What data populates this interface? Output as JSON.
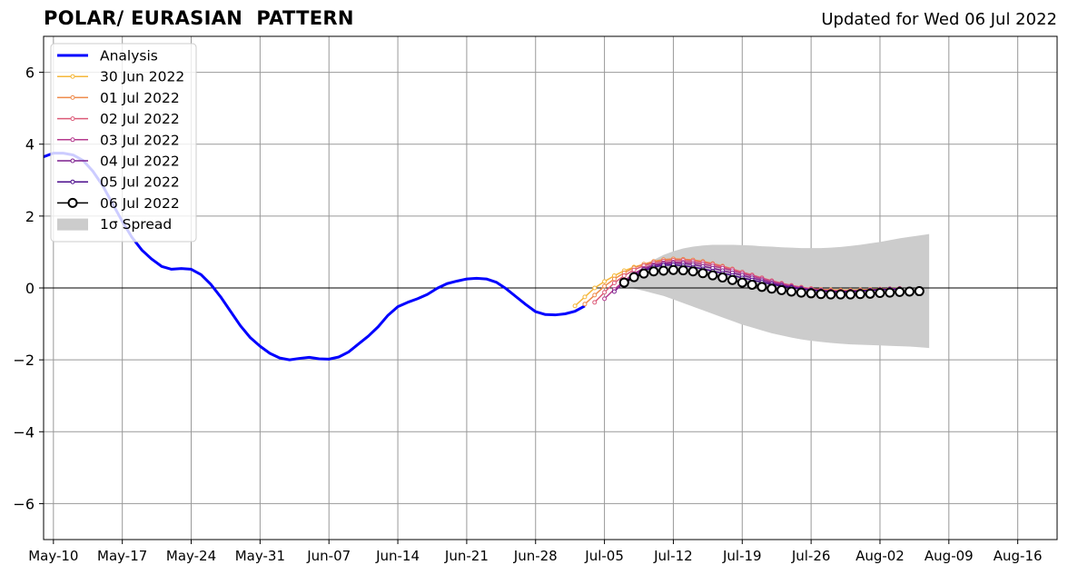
{
  "chart_data": {
    "type": "line",
    "title": "POLAR/ EURASIAN  PATTERN",
    "subtitle": "Updated for Wed 06 Jul 2022",
    "xlabel": "",
    "ylabel": "",
    "ylim": [
      -7,
      7
    ],
    "yticks": [
      -6,
      -4,
      -2,
      0,
      2,
      4,
      6
    ],
    "xlim_dates": [
      "2022-05-09",
      "2022-08-20"
    ],
    "xtick_labels": [
      "May-10",
      "May-17",
      "May-24",
      "May-31",
      "Jun-07",
      "Jun-14",
      "Jun-21",
      "Jun-28",
      "Jul-05",
      "Jul-12",
      "Jul-19",
      "Jul-26",
      "Aug-02",
      "Aug-09",
      "Aug-16"
    ],
    "xtick_dates": [
      "2022-05-10",
      "2022-05-17",
      "2022-05-24",
      "2022-05-31",
      "2022-06-07",
      "2022-06-14",
      "2022-06-21",
      "2022-06-28",
      "2022-07-05",
      "2022-07-12",
      "2022-07-19",
      "2022-07-26",
      "2022-08-02",
      "2022-08-09",
      "2022-08-16"
    ],
    "grid": true,
    "legend_position": "top-left",
    "analysis": {
      "name": "Analysis",
      "color": "#0000ff",
      "x": [
        "2022-05-07",
        "2022-05-08",
        "2022-05-09",
        "2022-05-10",
        "2022-05-11",
        "2022-05-12",
        "2022-05-13",
        "2022-05-14",
        "2022-05-15",
        "2022-05-16",
        "2022-05-17",
        "2022-05-18",
        "2022-05-19",
        "2022-05-20",
        "2022-05-21",
        "2022-05-22",
        "2022-05-23",
        "2022-05-24",
        "2022-05-25",
        "2022-05-26",
        "2022-05-27",
        "2022-05-28",
        "2022-05-29",
        "2022-05-30",
        "2022-05-31",
        "2022-06-01",
        "2022-06-02",
        "2022-06-03",
        "2022-06-04",
        "2022-06-05",
        "2022-06-06",
        "2022-06-07",
        "2022-06-08",
        "2022-06-09",
        "2022-06-10",
        "2022-06-11",
        "2022-06-12",
        "2022-06-13",
        "2022-06-14",
        "2022-06-15",
        "2022-06-16",
        "2022-06-17",
        "2022-06-18",
        "2022-06-19",
        "2022-06-20",
        "2022-06-21",
        "2022-06-22",
        "2022-06-23",
        "2022-06-24",
        "2022-06-25",
        "2022-06-26",
        "2022-06-27",
        "2022-06-28",
        "2022-06-29",
        "2022-06-30",
        "2022-07-01",
        "2022-07-02",
        "2022-07-03"
      ],
      "y": [
        3.3,
        3.5,
        3.65,
        3.75,
        3.75,
        3.7,
        3.55,
        3.25,
        2.85,
        2.35,
        1.85,
        1.4,
        1.05,
        0.8,
        0.6,
        0.52,
        0.54,
        0.52,
        0.37,
        0.1,
        -0.25,
        -0.65,
        -1.05,
        -1.38,
        -1.62,
        -1.82,
        -1.95,
        -2.0,
        -1.96,
        -1.93,
        -1.97,
        -1.98,
        -1.92,
        -1.78,
        -1.56,
        -1.34,
        -1.08,
        -0.76,
        -0.52,
        -0.4,
        -0.3,
        -0.18,
        -0.01,
        0.12,
        0.19,
        0.25,
        0.27,
        0.25,
        0.16,
        -0.02,
        -0.24,
        -0.46,
        -0.66,
        -0.74,
        -0.75,
        -0.72,
        -0.65,
        -0.5
      ]
    },
    "forecasts": [
      {
        "name": "30 Jun 2022",
        "color": "#f5b73a",
        "start": "2022-07-02",
        "y": [
          -0.5,
          -0.25,
          0.0,
          0.18,
          0.34,
          0.48,
          0.58,
          0.66,
          0.72,
          0.76,
          0.78,
          0.78,
          0.76,
          0.72,
          0.66,
          0.58,
          0.5,
          0.42,
          0.34,
          0.26,
          0.18,
          0.12,
          0.06,
          0.02,
          -0.02,
          -0.04,
          -0.05,
          -0.06,
          -0.06,
          -0.05,
          -0.04,
          -0.03,
          -0.02,
          -0.01
        ]
      },
      {
        "name": "01 Jul 2022",
        "color": "#ee8a4a",
        "start": "2022-07-03",
        "y": [
          -0.45,
          -0.2,
          0.05,
          0.25,
          0.42,
          0.56,
          0.66,
          0.74,
          0.79,
          0.81,
          0.8,
          0.78,
          0.74,
          0.68,
          0.61,
          0.53,
          0.44,
          0.36,
          0.28,
          0.2,
          0.13,
          0.07,
          0.02,
          -0.02,
          -0.05,
          -0.06,
          -0.07,
          -0.07,
          -0.06,
          -0.05,
          -0.04,
          -0.03,
          -0.02
        ]
      },
      {
        "name": "02 Jul 2022",
        "color": "#dc5a78",
        "start": "2022-07-04",
        "y": [
          -0.4,
          -0.12,
          0.14,
          0.34,
          0.5,
          0.62,
          0.7,
          0.75,
          0.77,
          0.77,
          0.75,
          0.71,
          0.66,
          0.59,
          0.52,
          0.44,
          0.36,
          0.28,
          0.2,
          0.13,
          0.07,
          0.02,
          -0.02,
          -0.05,
          -0.07,
          -0.08,
          -0.08,
          -0.07,
          -0.06,
          -0.04,
          -0.03,
          -0.02
        ]
      },
      {
        "name": "03 Jul 2022",
        "color": "#b53a8e",
        "start": "2022-07-05",
        "y": [
          -0.3,
          -0.04,
          0.2,
          0.4,
          0.55,
          0.65,
          0.7,
          0.72,
          0.72,
          0.7,
          0.66,
          0.61,
          0.55,
          0.48,
          0.4,
          0.33,
          0.25,
          0.18,
          0.11,
          0.05,
          0.0,
          -0.04,
          -0.07,
          -0.09,
          -0.1,
          -0.09,
          -0.08,
          -0.06,
          -0.05,
          -0.03,
          -0.02
        ]
      },
      {
        "name": "04 Jul 2022",
        "color": "#7c1f8e",
        "start": "2022-07-06",
        "y": [
          -0.1,
          0.16,
          0.38,
          0.52,
          0.62,
          0.67,
          0.69,
          0.68,
          0.65,
          0.6,
          0.55,
          0.48,
          0.42,
          0.35,
          0.28,
          0.21,
          0.14,
          0.08,
          0.03,
          -0.01,
          -0.05,
          -0.08,
          -0.1,
          -0.1,
          -0.09,
          -0.08,
          -0.06,
          -0.04,
          -0.03,
          -0.02
        ]
      },
      {
        "name": "05 Jul 2022",
        "color": "#4b0c8c",
        "start": "2022-07-07",
        "y": [
          0.1,
          0.32,
          0.48,
          0.58,
          0.63,
          0.64,
          0.62,
          0.58,
          0.53,
          0.47,
          0.41,
          0.35,
          0.28,
          0.22,
          0.16,
          0.1,
          0.05,
          0.01,
          -0.03,
          -0.06,
          -0.08,
          -0.1,
          -0.11,
          -0.1,
          -0.09,
          -0.07,
          -0.05,
          -0.04,
          -0.03
        ]
      }
    ],
    "latest": {
      "name": "06 Jul 2022",
      "color": "#000000",
      "start": "2022-07-07",
      "y": [
        0.15,
        0.3,
        0.4,
        0.46,
        0.48,
        0.5,
        0.49,
        0.46,
        0.41,
        0.35,
        0.29,
        0.22,
        0.15,
        0.09,
        0.03,
        -0.02,
        -0.06,
        -0.1,
        -0.13,
        -0.15,
        -0.17,
        -0.18,
        -0.18,
        -0.18,
        -0.17,
        -0.16,
        -0.14,
        -0.13,
        -0.11,
        -0.1,
        -0.09
      ]
    },
    "spread": {
      "name": "1σ Spread",
      "color": "#cccccc",
      "start": "2022-07-07",
      "upper": [
        0.2,
        0.4,
        0.6,
        0.78,
        0.92,
        1.02,
        1.1,
        1.15,
        1.18,
        1.2,
        1.2,
        1.2,
        1.19,
        1.18,
        1.16,
        1.15,
        1.13,
        1.12,
        1.11,
        1.11,
        1.11,
        1.12,
        1.14,
        1.17,
        1.2,
        1.24,
        1.28,
        1.33,
        1.38,
        1.42,
        1.46,
        1.5
      ],
      "lower": [
        0.05,
        -0.02,
        -0.08,
        -0.15,
        -0.22,
        -0.32,
        -0.42,
        -0.52,
        -0.62,
        -0.72,
        -0.82,
        -0.92,
        -1.02,
        -1.1,
        -1.18,
        -1.26,
        -1.32,
        -1.38,
        -1.43,
        -1.47,
        -1.5,
        -1.53,
        -1.55,
        -1.57,
        -1.58,
        -1.59,
        -1.6,
        -1.61,
        -1.62,
        -1.63,
        -1.65,
        -1.67
      ]
    }
  }
}
